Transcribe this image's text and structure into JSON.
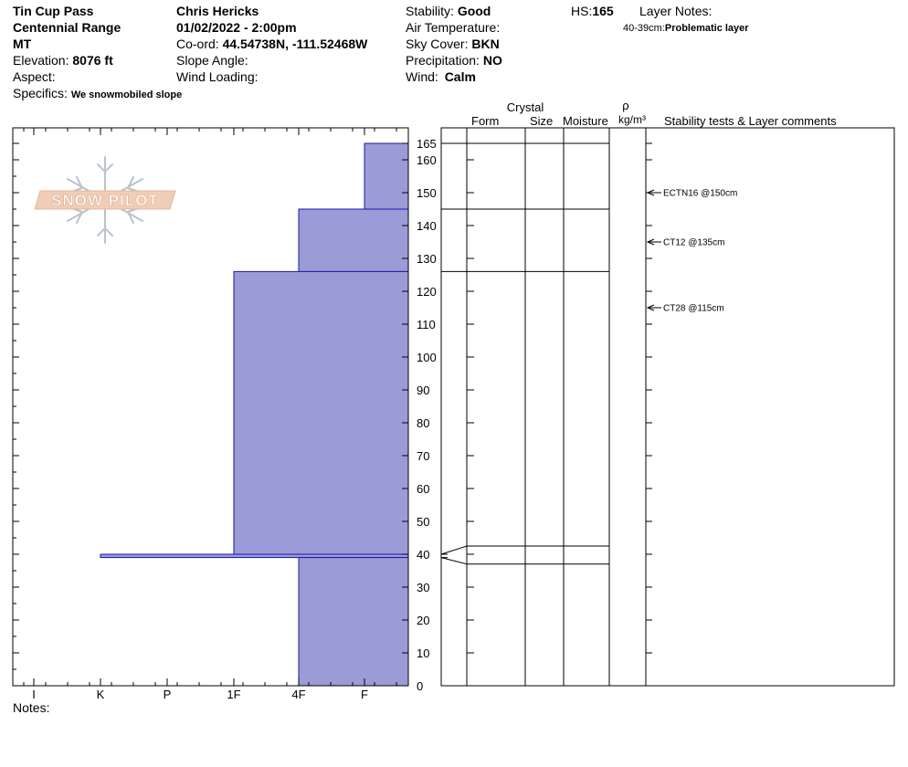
{
  "header": {
    "location": "Tin Cup Pass",
    "range": "Centennial Range",
    "state": "MT",
    "elevation_label": "Elevation:",
    "elevation_value": "8076 ft",
    "aspect_label": "Aspect:",
    "specifics_label": "Specifics:",
    "specifics_value": "We snowmobiled slope",
    "observer": "Chris Hericks",
    "datetime": "01/02/2022 - 2:00pm",
    "coord_label": "Co-ord:",
    "coord_value": "44.54738N, -111.52468W",
    "slope_label": "Slope Angle:",
    "wind_loading_label": "Wind Loading:",
    "stability_label": "Stability:",
    "stability_value": "Good",
    "air_temp_label": "Air Temperature:",
    "sky_label": "Sky Cover:",
    "sky_value": "BKN",
    "precip_label": "Precipitation:",
    "precip_value": "NO",
    "wind_label": "Wind:",
    "wind_value": "Calm",
    "hs_label": "HS:",
    "hs_value": "165",
    "layer_notes_label": "Layer Notes:",
    "layer_note_range": "40-39cm:",
    "layer_note_text": "Problematic layer"
  },
  "logo": {
    "text": "SNOW PILOT"
  },
  "table_headers": {
    "crystal": "Crystal",
    "form": "Form",
    "size": "Size",
    "moisture": "Moisture",
    "rho": "ρ",
    "density_unit": "kg/m³",
    "comments": "Stability tests & Layer comments"
  },
  "notes_label": "Notes:",
  "colors": {
    "fill": "#9b9bd7",
    "edge": "#1a1aa8"
  },
  "chart_data": {
    "type": "bar",
    "orientation": "horizontal",
    "x_axis": {
      "categories": [
        "I",
        "K",
        "P",
        "1F",
        "4F",
        "F"
      ]
    },
    "y_axis": {
      "min": 0,
      "max": 165,
      "ticks": [
        0,
        10,
        20,
        30,
        40,
        50,
        60,
        70,
        80,
        90,
        100,
        110,
        120,
        130,
        140,
        150,
        160,
        165
      ]
    },
    "layers": [
      {
        "top": 165,
        "bottom": 145,
        "hardness": "F"
      },
      {
        "top": 145,
        "bottom": 126,
        "hardness": "4F"
      },
      {
        "top": 126,
        "bottom": 40,
        "hardness": "1F"
      },
      {
        "top": 40,
        "bottom": 39,
        "hardness": "K"
      },
      {
        "top": 39,
        "bottom": 0,
        "hardness": "4F"
      }
    ],
    "layer_boundaries": [
      165,
      145,
      126,
      42.5,
      37
    ],
    "stability_tests": [
      {
        "depth": 150,
        "label": "ECTN16 @150cm"
      },
      {
        "depth": 135,
        "label": "CT12 @135cm"
      },
      {
        "depth": 115,
        "label": "CT28 @115cm"
      }
    ]
  }
}
